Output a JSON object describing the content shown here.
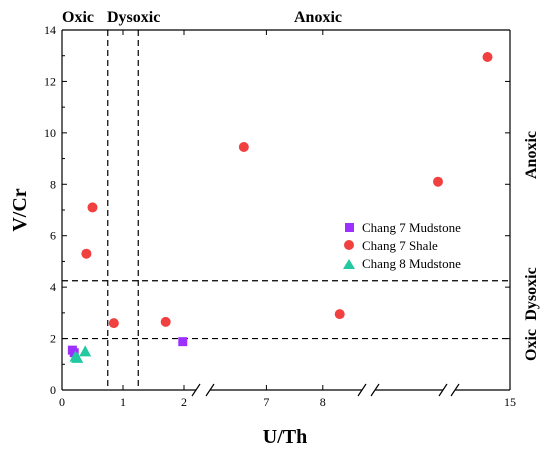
{
  "chart_data": {
    "type": "scatter",
    "title": "",
    "xlabel": "U/Th",
    "ylabel": "V/Cr",
    "x_scale": "broken",
    "x_segments": [
      {
        "range": [
          0,
          2
        ],
        "ticks": [
          0,
          1,
          2
        ],
        "tick_labels": [
          "0",
          "1",
          "2"
        ]
      },
      {
        "range": [
          6,
          8.5
        ],
        "ticks": [
          7,
          8
        ],
        "tick_labels": [
          "7",
          "8"
        ]
      },
      {
        "range": [
          12,
          15
        ],
        "ticks": [
          15
        ],
        "tick_labels": [
          "15"
        ]
      }
    ],
    "ylim": [
      0,
      14
    ],
    "y_ticks": [
      0,
      2,
      4,
      6,
      8,
      10,
      12,
      14
    ],
    "y_tick_labels": [
      "0",
      "2",
      "4",
      "6",
      "8",
      "10",
      "12",
      "14"
    ],
    "grid": false,
    "legend_position": "right",
    "series": [
      {
        "name": "Chang 7 Mudstone",
        "marker": "square",
        "color": "#9b30ff",
        "points": [
          [
            0.17,
            1.55
          ],
          [
            0.2,
            1.45
          ],
          [
            1.98,
            1.88
          ]
        ]
      },
      {
        "name": "Chang 7 Shale",
        "marker": "circle",
        "color": "#f04040",
        "points": [
          [
            0.4,
            5.3
          ],
          [
            0.5,
            7.1
          ],
          [
            0.85,
            2.6
          ],
          [
            1.7,
            2.65
          ],
          [
            6.6,
            9.45
          ],
          [
            8.3,
            2.95
          ],
          [
            13.4,
            8.1
          ],
          [
            14.5,
            12.95
          ]
        ]
      },
      {
        "name": "Chang 8 Mudstone",
        "marker": "triangle",
        "color": "#22c9a0",
        "points": [
          [
            0.22,
            1.3
          ],
          [
            0.25,
            1.25
          ],
          [
            0.38,
            1.5
          ]
        ]
      }
    ],
    "reference_lines": [
      {
        "orientation": "vertical",
        "x": 0.75
      },
      {
        "orientation": "vertical",
        "x": 1.25
      },
      {
        "orientation": "horizontal",
        "y": 4.25
      },
      {
        "orientation": "horizontal",
        "y": 2.0
      }
    ],
    "region_labels_top": [
      "Oxic",
      "Dysoxic",
      "Anoxic"
    ],
    "region_labels_right": [
      "Anoxic",
      "Oxic",
      "Dysoxic"
    ]
  }
}
